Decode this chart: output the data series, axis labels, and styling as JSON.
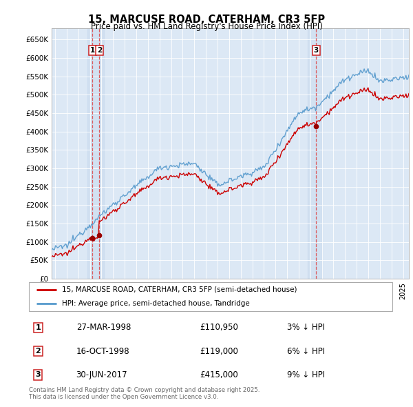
{
  "title": "15, MARCUSE ROAD, CATERHAM, CR3 5FP",
  "subtitle": "Price paid vs. HM Land Registry's House Price Index (HPI)",
  "ylim": [
    0,
    680000
  ],
  "yticks": [
    0,
    50000,
    100000,
    150000,
    200000,
    250000,
    300000,
    350000,
    400000,
    450000,
    500000,
    550000,
    600000,
    650000
  ],
  "xlim_start": 1994.7,
  "xlim_end": 2025.5,
  "plot_bg_color": "#dce8f5",
  "hpi_color": "#5599cc",
  "price_color": "#cc0000",
  "sale_marker_color": "#990000",
  "dashed_line_color": "#dd4444",
  "legend_label_price": "15, MARCUSE ROAD, CATERHAM, CR3 5FP (semi-detached house)",
  "legend_label_hpi": "HPI: Average price, semi-detached house, Tandridge",
  "transactions": [
    {
      "num": 1,
      "date": "27-MAR-1998",
      "date_val": 1998.23,
      "price": 110950,
      "pct": "3%",
      "dir": "↓"
    },
    {
      "num": 2,
      "date": "16-OCT-1998",
      "date_val": 1998.79,
      "price": 119000,
      "pct": "6%",
      "dir": "↓"
    },
    {
      "num": 3,
      "date": "30-JUN-2017",
      "date_val": 2017.49,
      "price": 415000,
      "pct": "9%",
      "dir": "↓"
    }
  ],
  "footer": "Contains HM Land Registry data © Crown copyright and database right 2025.\nThis data is licensed under the Open Government Licence v3.0."
}
